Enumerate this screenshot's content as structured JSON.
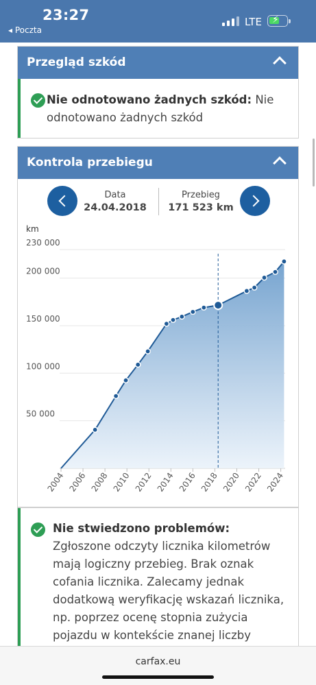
{
  "status_bar": {
    "time": "23:27",
    "back_label": "◂ Poczta",
    "network": "LTE"
  },
  "damage_section": {
    "title": "Przegląd szkód",
    "status_bold": "Nie odnotowano żadnych szkód:",
    "status_text": " Nie odnotowano żadnych szkód"
  },
  "mileage_section": {
    "title": "Kontrola przebiegu",
    "date_label": "Data",
    "date_value": "24.04.2018",
    "mileage_label": "Przebieg",
    "mileage_value": "171 523 km"
  },
  "chart_data": {
    "type": "area",
    "ylabel": "km",
    "ylim": [
      0,
      230000
    ],
    "xlim": [
      2004,
      2024.4
    ],
    "y_ticks": [
      {
        "value": 230000,
        "label": "230 000"
      },
      {
        "value": 200000,
        "label": "200 000"
      },
      {
        "value": 150000,
        "label": "150 000"
      },
      {
        "value": 100000,
        "label": "100 000"
      },
      {
        "value": 50000,
        "label": "50 000"
      }
    ],
    "x_ticks": [
      "2004",
      "2006",
      "2008",
      "2010",
      "2012",
      "2014",
      "2016",
      "2018",
      "2020",
      "2022",
      "2024"
    ],
    "x": [
      2004.0,
      2007.1,
      2009.0,
      2009.9,
      2011.0,
      2011.9,
      2013.6,
      2014.2,
      2015.0,
      2016.0,
      2017.0,
      2018.3,
      2020.9,
      2021.6,
      2022.5,
      2023.5,
      2024.3
    ],
    "y": [
      0,
      40500,
      76000,
      92500,
      109000,
      123000,
      152000,
      156000,
      159500,
      164500,
      169000,
      171523,
      186500,
      190000,
      200500,
      206500,
      217500
    ],
    "selected": {
      "x": 2018.3,
      "y": 171523
    },
    "line_color": "#1f5a96",
    "fill_color": "#7fa9d2"
  },
  "verdict": {
    "status_bold": "Nie stwiedzono problemów:",
    "status_text": " Zgłoszone odczyty licznika kilometrów mają logiczny przebieg. Brak oznak cofania licznika. Zalecamy jednak dodatkową weryfikację wskazań licznika, np. poprzez ocenę stopnia zużycia pojazdu w kontekście znanej liczby wymian oleju lub"
  },
  "browser": {
    "url": "carfax.eu"
  },
  "colors": {
    "header_blue": "#4a77ad",
    "panel_blue": "#4f7fb6",
    "nav_blue": "#1d5fa0",
    "ok_green": "#2e9e55"
  },
  "icons": {
    "check": "check-circle-icon",
    "collapse": "chevron-up-icon",
    "prev": "chevron-left-icon",
    "next": "chevron-right-icon"
  }
}
